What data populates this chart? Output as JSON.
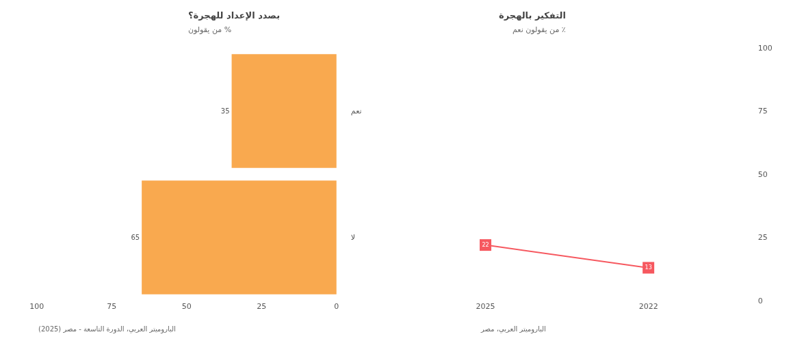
{
  "chart_data": [
    {
      "type": "bar",
      "orientation": "horizontal",
      "title": "بصدد الإعداد للهجرة؟",
      "subtitle": "% من يقولون",
      "categories": [
        "نعم",
        "لا"
      ],
      "values": [
        35,
        65
      ],
      "color": "#f9a94f",
      "xlim": [
        100,
        0
      ],
      "xticks": [
        0,
        25,
        50,
        75,
        100
      ],
      "data_labels": true,
      "annotations": [
        "الباروميتر العربي، الدورة التاسعة - مصر (2025)"
      ]
    },
    {
      "type": "line",
      "title": "التفكير بالهجرة",
      "subtitle": "٪ من يقولون نعم",
      "categories": [
        "2025",
        "2022"
      ],
      "values": [
        22,
        13
      ],
      "color": "#f6585f",
      "ylim": [
        0,
        100
      ],
      "yticks": [
        0,
        25,
        50,
        75,
        100
      ],
      "marker": "square",
      "data_labels": true,
      "annotations": [
        "الباروميتر العربي، مصر"
      ]
    }
  ]
}
